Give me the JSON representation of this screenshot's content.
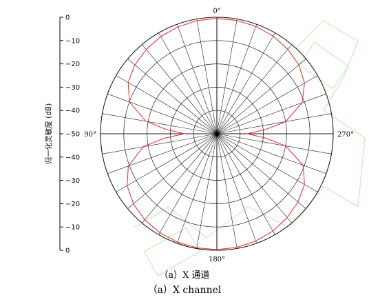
{
  "chart_data": {
    "type": "polar",
    "ylabel": "归一化灵敏度 (dB)",
    "radial_ticks": [
      "0",
      "−10",
      "−20",
      "−30",
      "−40",
      "−50",
      "−40",
      "−30",
      "−20",
      "−10",
      "0"
    ],
    "rlim": [
      -50,
      0
    ],
    "radial_step": 10,
    "angle_labels": {
      "top": "0°",
      "left": "90°",
      "right": "270°",
      "bottom": "180°"
    },
    "angular_grid_step_deg": 10,
    "grid": true,
    "series": [
      {
        "color": "#e53935",
        "theta_deg": [
          0,
          10,
          20,
          30,
          40,
          50,
          60,
          70,
          80,
          85,
          90,
          95,
          100,
          110,
          120,
          130,
          140,
          150,
          160,
          170,
          180,
          190,
          200,
          210,
          220,
          230,
          240,
          250,
          260,
          265,
          270,
          275,
          280,
          290,
          300,
          310,
          320,
          330,
          340,
          350
        ],
        "r_db": [
          -0.5,
          -0.7,
          -1.2,
          -1.8,
          -2.8,
          -4.0,
          -6.0,
          -10.0,
          -19.0,
          -28.0,
          -36.0,
          -27.0,
          -18.0,
          -9.5,
          -5.5,
          -3.2,
          -1.8,
          -1.0,
          -0.5,
          -0.3,
          -0.3,
          -0.5,
          -1.0,
          -1.8,
          -3.0,
          -4.5,
          -6.5,
          -10.5,
          -20.0,
          -29.0,
          -37.0,
          -29.0,
          -20.0,
          -11.0,
          -6.5,
          -4.0,
          -2.6,
          -1.6,
          -1.0,
          -0.6
        ]
      }
    ]
  },
  "caption_cn": "（a）X 通道",
  "caption_en": "（a）X channel",
  "colors": {
    "grid": "#1a1a1a",
    "curve": "#e53935",
    "watermark": "#c9f0c3"
  }
}
